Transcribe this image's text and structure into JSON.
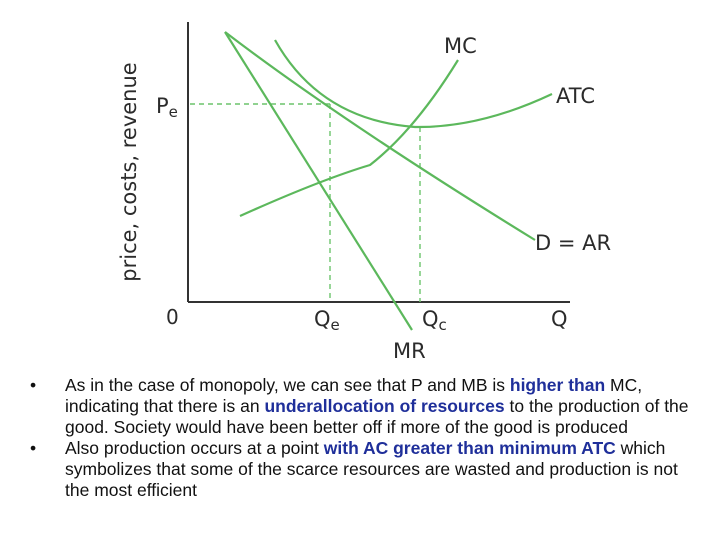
{
  "diagram": {
    "y_axis_label": "price, costs, revenue",
    "origin_label": "0",
    "pe_label": "Pe",
    "x_labels": {
      "qe": "Qe",
      "qc": "Qc",
      "q": "Q"
    },
    "curve_labels": {
      "mc": "MC",
      "atc": "ATC",
      "demand": "D = AR",
      "mr": "MR"
    },
    "colors": {
      "curves": "#5cb85c",
      "axes": "#333333",
      "highlight": "#1f2f9a"
    }
  },
  "bullets": [
    {
      "bullet": "•",
      "parts": [
        {
          "text": "As in the case of monopoly, we can see that P and MB is ",
          "hl": false
        },
        {
          "text": "higher than",
          "hl": true
        },
        {
          "text": " MC, indicating that there is an ",
          "hl": false
        },
        {
          "text": "underallocation of resources",
          "hl": true
        },
        {
          "text": " to the production of the good.  Society would have been better off if more of the good is produced",
          "hl": false
        }
      ]
    },
    {
      "bullet": "•",
      "parts": [
        {
          "text": "Also production occurs at a point ",
          "hl": false
        },
        {
          "text": "with AC greater than minimum ATC",
          "hl": true
        },
        {
          "text": " which symbolizes that some of the scarce resources are wasted and production is not the most efficient",
          "hl": false
        }
      ]
    }
  ]
}
